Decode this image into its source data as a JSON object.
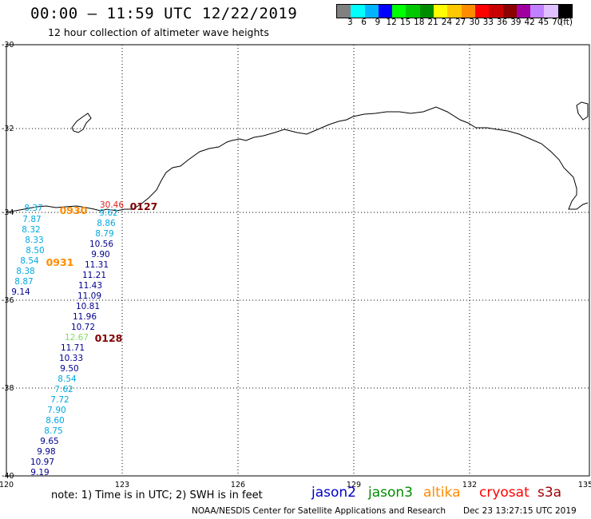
{
  "header": {
    "title": "00:00 – 11:59 UTC 12/22/2019",
    "subtitle": "12 hour collection of altimeter wave heights"
  },
  "legend": {
    "colors": [
      "#808080",
      "#00ffff",
      "#00b4ff",
      "#0000ff",
      "#00ff00",
      "#00c800",
      "#008c00",
      "#ffff00",
      "#ffc800",
      "#ff8c00",
      "#ff0000",
      "#c80000",
      "#8c0000",
      "#a000a0",
      "#c080ff",
      "#e0c0ff",
      "#000000"
    ],
    "labels": [
      "3",
      "6",
      "9",
      "12",
      "15",
      "18",
      "21",
      "24",
      "27",
      "30",
      "33",
      "36",
      "39",
      "42",
      "45",
      "70",
      "(ft)"
    ]
  },
  "axes": {
    "lat_labels": [
      "-30",
      "-32",
      "-34",
      "-36",
      "-38",
      "-40"
    ],
    "lon_labels": [
      "120",
      "123",
      "126",
      "129",
      "132",
      "135"
    ]
  },
  "tracks": [
    {
      "color": "#00a8e0",
      "values": [
        "8.37",
        "7.87",
        "8.32",
        "8.33",
        "8.50",
        "8.54",
        "8.38",
        "8.87"
      ]
    },
    {
      "color": "#000090",
      "values": [
        "9.14"
      ]
    },
    {
      "color": "#00a8e0",
      "values": [
        "9.62",
        "8.86",
        "8.79"
      ]
    },
    {
      "color": "#000090",
      "values": [
        "10.56",
        "9.90",
        "11.31",
        "11.21",
        "11.43",
        "11.09",
        "10.81",
        "11.96",
        "10.72"
      ]
    },
    {
      "color": "#80e060",
      "values": [
        "12.67"
      ]
    },
    {
      "color": "#000090",
      "values": [
        "11.71",
        "10.33",
        "9.50"
      ]
    },
    {
      "color": "#00a8e0",
      "values": [
        "8.54",
        "7.62",
        "7.72",
        "7.90",
        "8.60",
        "8.75"
      ]
    },
    {
      "color": "#000090",
      "values": [
        "9.65",
        "9.98",
        "10.97",
        "9.19"
      ]
    },
    {
      "color": "#e02020",
      "values": [
        "30.46"
      ]
    }
  ],
  "time_labels": [
    {
      "text": "0930",
      "color": "#ff8c00"
    },
    {
      "text": "0931",
      "color": "#ff8c00"
    },
    {
      "text": "0127",
      "color": "#800000"
    },
    {
      "text": "0128",
      "color": "#800000"
    }
  ],
  "footer": {
    "note": "note:  1) Time is in UTC;  2) SWH is in feet",
    "satellites": [
      {
        "name": "jason2",
        "color": "#0000c8"
      },
      {
        "name": "jason3",
        "color": "#008c00"
      },
      {
        "name": "altika",
        "color": "#ff8c00"
      },
      {
        "name": "cryosat",
        "color": "#ff0000"
      },
      {
        "name": "s3a",
        "color": "#a00000"
      }
    ],
    "credit": "NOAA/NESDIS Center for Satellite Applications and Research",
    "timestamp": "Dec 23 13:27:15 UTC 2019"
  }
}
